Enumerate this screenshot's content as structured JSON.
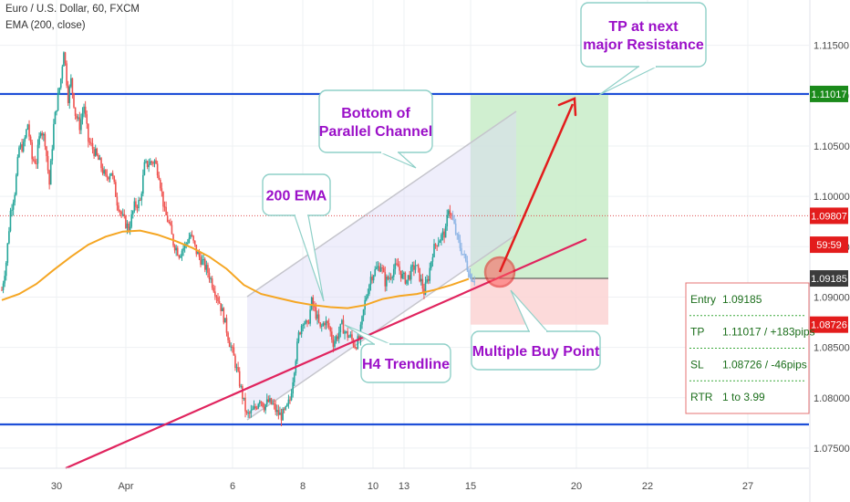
{
  "header": {
    "symbol_line": "Euro / U.S. Dollar, 60, FXCM",
    "indicator_line": "EMA (200, close)"
  },
  "colors": {
    "bull": "#26a69a",
    "bear": "#ef5350",
    "ema": "#f5a623",
    "level": "#1e4fd8",
    "trend": "#e0245e",
    "callout": "#9b10c8",
    "tp_zone": "#c8ecc8",
    "sl_zone": "#fbd3d3",
    "green_tag": "#1b8a1b",
    "red_tag": "#e31c1c",
    "dark_tag": "#3c3c3c"
  },
  "chart_data": {
    "type": "candlestick",
    "symbol": "EURUSD",
    "timeframe": "60",
    "x_ticks": [
      "30",
      "Apr",
      "6",
      "8",
      "10",
      "13",
      "15",
      "20",
      "22",
      "27"
    ],
    "y_ticks": [
      "1.11500",
      "1.11000",
      "1.10500",
      "1.10000",
      "1.09500",
      "1.09000",
      "1.08500",
      "1.08000",
      "1.07500"
    ],
    "ylim": [
      1.073,
      1.1195
    ],
    "price_path": [
      [
        0,
        1.0907
      ],
      [
        3,
        1.0935
      ],
      [
        6,
        1.0985
      ],
      [
        9,
        1.1005
      ],
      [
        12,
        1.1048
      ],
      [
        15,
        1.105
      ],
      [
        18,
        1.1072
      ],
      [
        21,
        1.1037
      ],
      [
        24,
        1.1035
      ],
      [
        27,
        1.1068
      ],
      [
        30,
        1.1055
      ],
      [
        33,
        1.1012
      ],
      [
        36,
        1.107
      ],
      [
        38,
        1.109
      ],
      [
        41,
        1.1117
      ],
      [
        43,
        1.1147
      ],
      [
        46,
        1.1098
      ],
      [
        48,
        1.1115
      ],
      [
        51,
        1.1082
      ],
      [
        54,
        1.107
      ],
      [
        57,
        1.109
      ],
      [
        60,
        1.1055
      ],
      [
        64,
        1.1045
      ],
      [
        68,
        1.1033
      ],
      [
        72,
        1.1018
      ],
      [
        76,
        1.1025
      ],
      [
        80,
        1.0995
      ],
      [
        84,
        1.0978
      ],
      [
        88,
        1.0968
      ],
      [
        92,
        1.099
      ],
      [
        96,
        1.0995
      ],
      [
        99,
        1.103
      ],
      [
        102,
        1.1033
      ],
      [
        106,
        1.1035
      ],
      [
        109,
        1.1022
      ],
      [
        113,
        1.0984
      ],
      [
        116,
        1.0973
      ],
      [
        119,
        1.0954
      ],
      [
        123,
        1.0943
      ],
      [
        127,
        1.0951
      ],
      [
        131,
        1.0962
      ],
      [
        135,
        1.0945
      ],
      [
        139,
        1.0935
      ],
      [
        143,
        1.0925
      ],
      [
        147,
        1.091
      ],
      [
        151,
        1.0895
      ],
      [
        154,
        1.088
      ],
      [
        158,
        1.0855
      ],
      [
        161,
        1.084
      ],
      [
        165,
        1.0815
      ],
      [
        168,
        1.0795
      ],
      [
        170,
        1.0782
      ],
      [
        173,
        1.0785
      ],
      [
        176,
        1.079
      ],
      [
        179,
        1.08
      ],
      [
        182,
        1.0792
      ],
      [
        185,
        1.0796
      ],
      [
        188,
        1.0793
      ],
      [
        191,
        1.0785
      ],
      [
        194,
        1.0782
      ],
      [
        197,
        1.0787
      ],
      [
        200,
        1.0798
      ],
      [
        203,
        1.083
      ],
      [
        206,
        1.0862
      ],
      [
        209,
        1.0878
      ],
      [
        212,
        1.087
      ],
      [
        215,
        1.0895
      ],
      [
        218,
        1.0883
      ],
      [
        221,
        1.0868
      ],
      [
        224,
        1.0876
      ],
      [
        227,
        1.087
      ],
      [
        230,
        1.0855
      ],
      [
        233,
        1.0862
      ],
      [
        236,
        1.0872
      ],
      [
        239,
        1.0863
      ],
      [
        242,
        1.086
      ],
      [
        245,
        1.0852
      ],
      [
        248,
        1.0858
      ],
      [
        252,
        1.0895
      ],
      [
        256,
        1.092
      ],
      [
        260,
        1.0928
      ],
      [
        263,
        1.0932
      ],
      [
        266,
        1.0915
      ],
      [
        269,
        1.092
      ],
      [
        272,
        1.0928
      ],
      [
        275,
        1.093
      ],
      [
        278,
        1.092
      ],
      [
        281,
        1.0917
      ],
      [
        284,
        1.0925
      ],
      [
        287,
        1.0932
      ],
      [
        290,
        1.092
      ],
      [
        293,
        1.0905
      ],
      [
        296,
        1.092
      ],
      [
        299,
        1.0945
      ],
      [
        302,
        1.0955
      ],
      [
        305,
        1.096
      ],
      [
        308,
        1.0965
      ],
      [
        310,
        1.099
      ],
      [
        312,
        1.098
      ],
      [
        314,
        1.097
      ],
      [
        316,
        1.0958
      ],
      [
        318,
        1.095
      ],
      [
        320,
        1.0943
      ],
      [
        322,
        1.0935
      ],
      [
        324,
        1.0925
      ],
      [
        326,
        1.092
      ],
      [
        328,
        1.0918
      ]
    ],
    "ema200_path": [
      [
        0,
        1.0897
      ],
      [
        12,
        1.0903
      ],
      [
        24,
        1.0913
      ],
      [
        36,
        1.0927
      ],
      [
        48,
        1.094
      ],
      [
        60,
        1.0952
      ],
      [
        72,
        1.096
      ],
      [
        84,
        1.0965
      ],
      [
        96,
        1.0966
      ],
      [
        108,
        1.0962
      ],
      [
        120,
        1.0956
      ],
      [
        132,
        1.0949
      ],
      [
        144,
        1.094
      ],
      [
        156,
        1.0928
      ],
      [
        168,
        1.0912
      ],
      [
        180,
        1.0903
      ],
      [
        192,
        1.0899
      ],
      [
        204,
        1.0895
      ],
      [
        216,
        1.0892
      ],
      [
        228,
        1.089
      ],
      [
        240,
        1.0889
      ],
      [
        252,
        1.0892
      ],
      [
        264,
        1.0898
      ],
      [
        276,
        1.0901
      ],
      [
        288,
        1.0903
      ],
      [
        300,
        1.0907
      ],
      [
        312,
        1.0912
      ],
      [
        324,
        1.0918
      ]
    ],
    "levels": {
      "resistance": 1.11017,
      "support": 1.07735,
      "current_price": 1.09807,
      "entry": 1.09185,
      "stop": 1.08726
    },
    "price_tags": [
      {
        "label": "1.11017",
        "value": 1.11017,
        "style": "green"
      },
      {
        "label": "1.09807",
        "value": 1.09807,
        "style": "red"
      },
      {
        "label": "59:59",
        "value": 1.0952,
        "style": "red"
      },
      {
        "label": "1.09185",
        "value": 1.09185,
        "style": "dark"
      },
      {
        "label": "1.08726",
        "value": 1.08726,
        "style": "red"
      }
    ],
    "annotations": [
      {
        "label": "TP at next\nmajor Resistance"
      },
      {
        "label": "Bottom of\nParallel Channel"
      },
      {
        "label": "200 EMA"
      },
      {
        "label": "H4 Trendline"
      },
      {
        "label": "Multiple Buy Point"
      }
    ],
    "trade_summary": [
      {
        "name": "Entry",
        "value": "1.09185"
      },
      {
        "name": "TP",
        "value": "1.11017 / +183pips"
      },
      {
        "name": "SL",
        "value": "1.08726 /  -46pips"
      },
      {
        "name": "RTR",
        "value": "1 to 3.99"
      }
    ]
  }
}
